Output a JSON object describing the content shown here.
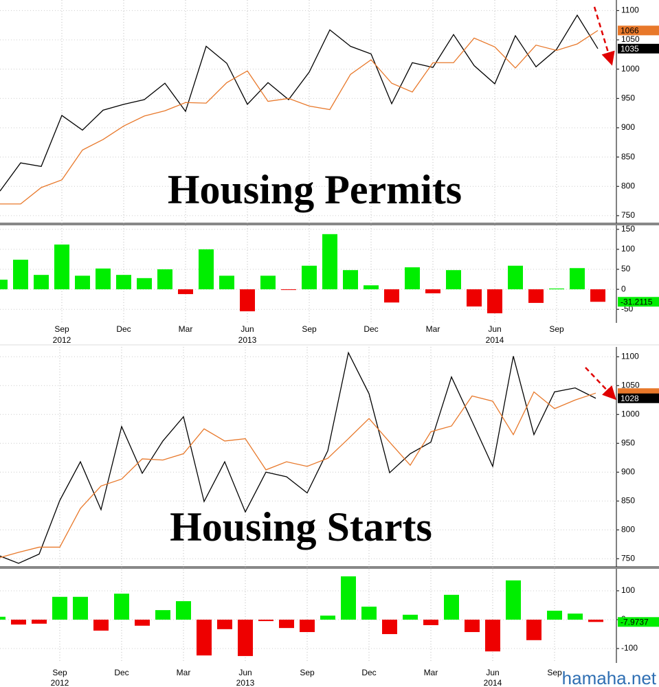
{
  "chart_data": [
    {
      "type": "line",
      "title": "Housing Permits",
      "categories": [
        null,
        null,
        null,
        "Sep",
        null,
        null,
        "Dec",
        null,
        null,
        "Mar",
        null,
        null,
        "Jun",
        null,
        null,
        "Sep",
        null,
        null,
        "Dec",
        null,
        null,
        "Mar",
        null,
        null,
        "Jun",
        null,
        null,
        "Sep",
        null,
        null
      ],
      "category_years": [
        null,
        null,
        null,
        "2012",
        null,
        null,
        null,
        null,
        null,
        null,
        null,
        null,
        "2013",
        null,
        null,
        null,
        null,
        null,
        null,
        null,
        null,
        null,
        null,
        null,
        "2014",
        null,
        null,
        null,
        null,
        null
      ],
      "series": [
        {
          "color": "#000000",
          "tag": true,
          "values": [
            792,
            840,
            834,
            921,
            896,
            930,
            940,
            948,
            976,
            928,
            1039,
            1010,
            940,
            977,
            948,
            995,
            1067,
            1039,
            1026,
            941,
            1011,
            1003,
            1059,
            1006,
            975,
            1057,
            1004,
            1034,
            1092,
            1035
          ]
        },
        {
          "color": "#e8782a",
          "tag": true,
          "values": [
            770,
            770,
            798,
            811,
            862,
            880,
            903,
            920,
            929,
            943,
            942,
            977,
            997,
            945,
            950,
            937,
            931,
            991,
            1016,
            976,
            961,
            1011,
            1011,
            1053,
            1038,
            1002,
            1041,
            1032,
            1043,
            1066
          ]
        }
      ],
      "ylim": [
        737,
        1118
      ],
      "yticks": [
        750,
        800,
        850,
        900,
        950,
        1000,
        1050,
        1100
      ],
      "bar_panel": {
        "type": "bar",
        "positive_color": "#00ee00",
        "negative_color": "#ee0000",
        "values": [
          24,
          74,
          36,
          112,
          34,
          52,
          36,
          28,
          50,
          -12,
          100,
          34,
          -55,
          34,
          -1,
          59,
          138,
          48,
          10,
          -33,
          55,
          -10,
          48,
          -43,
          -60,
          59,
          -34,
          2,
          53,
          -31.2115
        ],
        "ylim": [
          -84,
          160
        ],
        "yticks": [
          -50,
          0,
          50,
          100,
          150
        ]
      }
    },
    {
      "type": "line",
      "title": "Housing Starts",
      "categories": [
        null,
        null,
        null,
        "Sep",
        null,
        null,
        "Dec",
        null,
        null,
        "Mar",
        null,
        null,
        "Jun",
        null,
        null,
        "Sep",
        null,
        null,
        "Dec",
        null,
        null,
        "Mar",
        null,
        null,
        "Jun",
        null,
        null,
        "Sep",
        null,
        null
      ],
      "category_years": [
        null,
        null,
        null,
        "2012",
        null,
        null,
        null,
        null,
        null,
        null,
        null,
        null,
        "2013",
        null,
        null,
        null,
        null,
        null,
        null,
        null,
        null,
        null,
        null,
        null,
        "2014",
        null,
        null,
        null,
        null,
        null
      ],
      "series": [
        {
          "color": "#000000",
          "tag": true,
          "values": [
            756,
            742,
            758,
            851,
            918,
            835,
            979,
            898,
            954,
            996,
            849,
            918,
            831,
            900,
            892,
            864,
            937,
            1107,
            1036,
            899,
            932,
            952,
            1065,
            988,
            910,
            1101,
            965,
            1039,
            1046,
            1028
          ]
        },
        {
          "color": "#e8782a",
          "tag": false,
          "values": [
            751,
            761,
            770,
            770,
            837,
            876,
            888,
            923,
            921,
            932,
            975,
            954,
            958,
            904,
            918,
            910,
            924,
            958,
            993,
            952,
            912,
            970,
            980,
            1032,
            1023,
            965,
            1039,
            1010,
            1025,
            1037
          ]
        }
      ],
      "ylim": [
        736,
        1117
      ],
      "yticks": [
        750,
        800,
        850,
        900,
        950,
        1000,
        1050,
        1100
      ],
      "bar_panel": {
        "type": "bar",
        "positive_color": "#00ee00",
        "negative_color": "#ee0000",
        "values": [
          10,
          -17,
          -14,
          79,
          79,
          -38,
          90,
          -21,
          33,
          64,
          -124,
          -33,
          -126,
          -5,
          -29,
          -43,
          14,
          150,
          45,
          -50,
          17,
          -19,
          86,
          -43,
          -110,
          136,
          -71,
          31,
          21,
          -7.9737
        ],
        "ylim": [
          -150,
          176
        ],
        "yticks": [
          -100,
          0,
          100
        ]
      }
    }
  ],
  "watermark": "hamaha.net"
}
